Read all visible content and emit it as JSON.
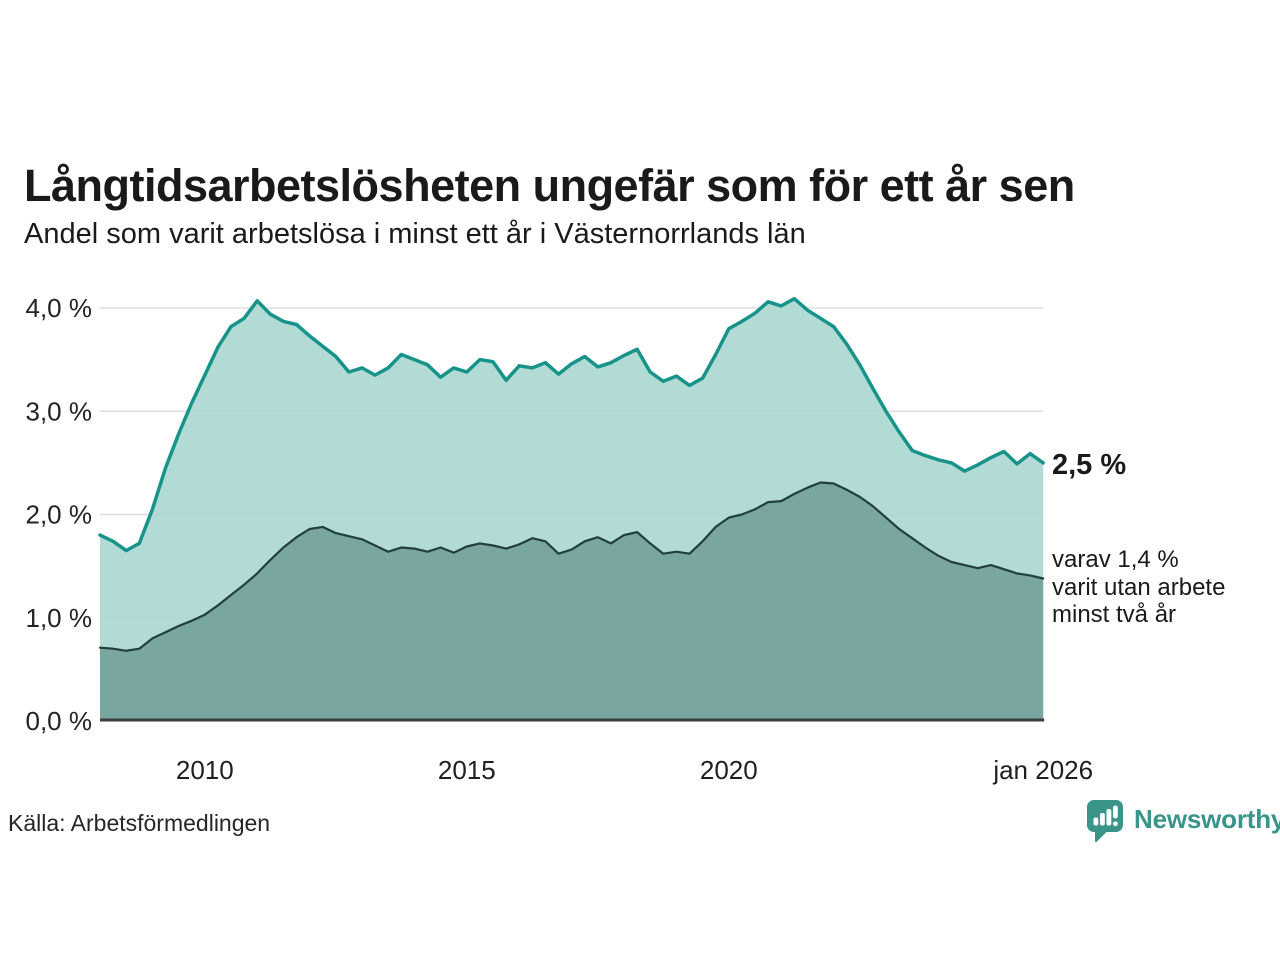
{
  "header": {
    "title": "Långtidsarbetslösheten ungefär som för ett år sen",
    "subtitle": "Andel som varit arbetslösa i minst ett år i Västernorrlands län"
  },
  "chart_data": {
    "type": "area",
    "title": "Långtidsarbetslösheten ungefär som för ett år sen",
    "subtitle": "Andel som varit arbetslösa i minst ett år i Västernorrlands län",
    "x_start": 2008,
    "x_step": 0.25,
    "x_end": 2026,
    "ylim": [
      0,
      4.3
    ],
    "grid": true,
    "grid_color": "#dedede",
    "axis_color": "#3d3d3d",
    "yticks": [
      {
        "value": 4.0,
        "label": "4,0 %"
      },
      {
        "value": 3.0,
        "label": "3,0 %"
      },
      {
        "value": 2.0,
        "label": "2,0 %"
      },
      {
        "value": 1.0,
        "label": "1,0 %"
      },
      {
        "value": 0.0,
        "label": "0,0 %"
      }
    ],
    "xticks": [
      {
        "value": 2010,
        "label": "2010"
      },
      {
        "value": 2015,
        "label": "2015"
      },
      {
        "value": 2020,
        "label": "2020"
      },
      {
        "value": 2026,
        "label": "jan 2026"
      }
    ],
    "series": [
      {
        "name": "Andel som varit arbetslösa i minst ett år",
        "line_color": "#17938a",
        "fill_color": "#abd8d1",
        "line_width": 3.5,
        "values": [
          1.8,
          1.74,
          1.65,
          1.72,
          2.05,
          2.45,
          2.78,
          3.08,
          3.35,
          3.62,
          3.82,
          3.9,
          4.07,
          3.94,
          3.87,
          3.84,
          3.73,
          3.63,
          3.53,
          3.38,
          3.42,
          3.35,
          3.42,
          3.55,
          3.5,
          3.45,
          3.33,
          3.42,
          3.38,
          3.5,
          3.48,
          3.3,
          3.44,
          3.42,
          3.47,
          3.36,
          3.46,
          3.53,
          3.43,
          3.47,
          3.54,
          3.6,
          3.38,
          3.29,
          3.34,
          3.25,
          3.32,
          3.55,
          3.8,
          3.87,
          3.95,
          4.06,
          4.02,
          4.09,
          3.98,
          3.9,
          3.82,
          3.65,
          3.45,
          3.22,
          3.0,
          2.8,
          2.62,
          2.57,
          2.53,
          2.5,
          2.42,
          2.48,
          2.55,
          2.61,
          2.49,
          2.59,
          2.5
        ]
      },
      {
        "name": "varav utan arbete minst två år",
        "line_color": "#223f3b",
        "fill_color": "#74a29b",
        "line_width": 2.2,
        "values": [
          0.71,
          0.7,
          0.68,
          0.7,
          0.8,
          0.86,
          0.92,
          0.97,
          1.03,
          1.12,
          1.22,
          1.32,
          1.43,
          1.56,
          1.68,
          1.78,
          1.86,
          1.88,
          1.82,
          1.79,
          1.76,
          1.7,
          1.64,
          1.68,
          1.67,
          1.64,
          1.68,
          1.63,
          1.69,
          1.72,
          1.7,
          1.67,
          1.71,
          1.77,
          1.74,
          1.62,
          1.66,
          1.74,
          1.78,
          1.72,
          1.8,
          1.83,
          1.72,
          1.62,
          1.64,
          1.62,
          1.74,
          1.88,
          1.97,
          2.0,
          2.05,
          2.12,
          2.13,
          2.2,
          2.26,
          2.31,
          2.3,
          2.24,
          2.17,
          2.08,
          1.97,
          1.86,
          1.77,
          1.68,
          1.6,
          1.54,
          1.51,
          1.48,
          1.51,
          1.47,
          1.43,
          1.41,
          1.38
        ]
      }
    ],
    "annotations": {
      "latest_value_label": "2,5 %",
      "note_line1": "varav 1,4 %",
      "note_line2": "varit utan arbete",
      "note_line3": "minst två år"
    }
  },
  "footer": {
    "source": "Källa: Arbetsförmedlingen",
    "logo_text": "Newsworthy",
    "logo_color": "#3a948a"
  }
}
